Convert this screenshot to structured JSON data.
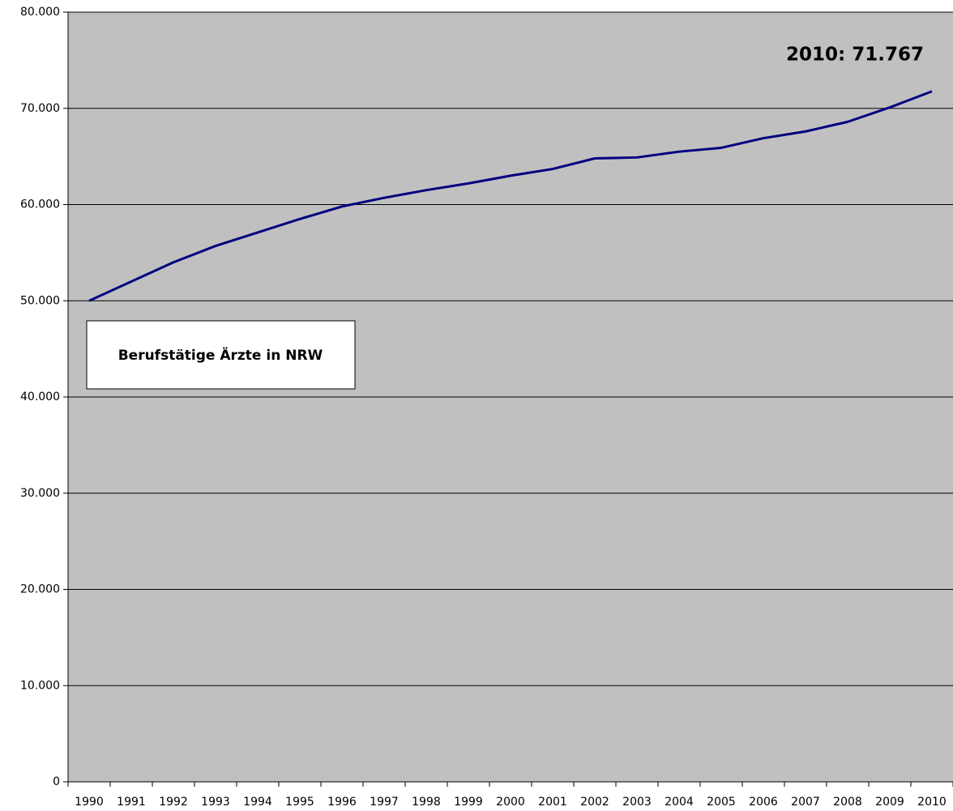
{
  "chart_data": {
    "type": "line",
    "title": "Berufstätige Ärzte in NRW",
    "annotation": "2010: 71.767",
    "categories": [
      "1990",
      "1991",
      "1992",
      "1993",
      "1994",
      "1995",
      "1996",
      "1997",
      "1998",
      "1999",
      "2000",
      "2001",
      "2002",
      "2003",
      "2004",
      "2005",
      "2006",
      "2007",
      "2008",
      "2009",
      "2010"
    ],
    "series": [
      {
        "color": "#000080",
        "values": [
          50000,
          52000,
          54000,
          55700,
          57100,
          58500,
          59800,
          60700,
          61500,
          62200,
          63000,
          63700,
          64800,
          64900,
          65500,
          65900,
          66900,
          67600,
          68600,
          70100,
          71767
        ]
      }
    ],
    "ylim": [
      0,
      80000
    ],
    "yticks": [
      0,
      {
        "value": 10000,
        "label": "10.000"
      },
      {
        "value": 20000,
        "label": "20.000"
      },
      {
        "value": 30000,
        "label": "30.000"
      },
      {
        "value": 40000,
        "label": "40.000"
      },
      {
        "value": 50000,
        "label": "50.000"
      },
      {
        "value": 60000,
        "label": "60.000"
      },
      {
        "value": 70000,
        "label": "70.000"
      },
      {
        "value": 80000,
        "label": "80.000"
      }
    ],
    "grid": true
  }
}
